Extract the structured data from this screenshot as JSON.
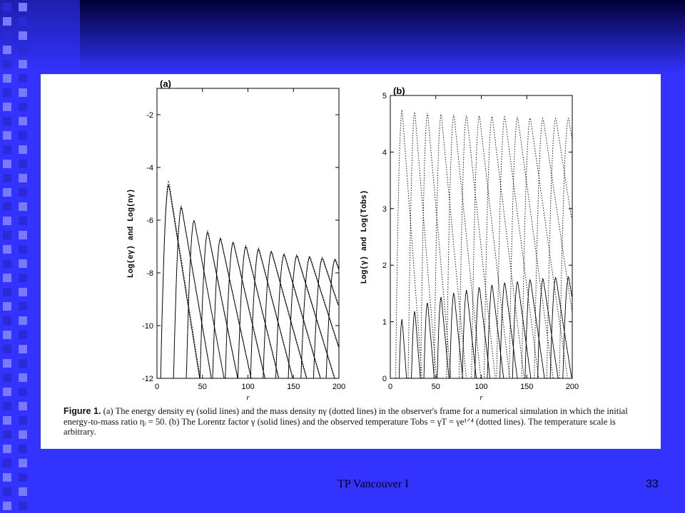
{
  "colors": {
    "slide_background": "#3333ff",
    "gradient_dark": "#000033",
    "square_light": "#7a7aff",
    "square_dark": "#2b2bd6",
    "figure_background": "#ffffff",
    "plot_ink": "#000000"
  },
  "chart_data": [
    {
      "type": "line",
      "panel_label": "(a)",
      "xlabel": "r",
      "ylabel": "Log(eγ) and Log(nγ)",
      "xlim": [
        0,
        200
      ],
      "ylim": [
        -12,
        -1
      ],
      "x_ticks": [
        0,
        50,
        100,
        150,
        200
      ],
      "y_ticks": [
        -12,
        -10,
        -8,
        -6,
        -4,
        -2
      ],
      "grid": false,
      "series": [
        {
          "name": "eγ",
          "style": "solid",
          "peaks_r": [
            13,
            27,
            41,
            56,
            70,
            84,
            98,
            112,
            126,
            140,
            154,
            168,
            182,
            196
          ],
          "peaks_value": [
            -4.65,
            -5.5,
            -6.0,
            -6.45,
            -6.7,
            -6.85,
            -7.0,
            -7.1,
            -7.2,
            -7.3,
            -7.35,
            -7.4,
            -7.45,
            -7.5
          ]
        },
        {
          "name": "nγ",
          "style": "dotted",
          "peaks_r": [
            13,
            27,
            41,
            56,
            70,
            84,
            98,
            112,
            126,
            140,
            154,
            168,
            182,
            196
          ],
          "peaks_value": [
            -4.5,
            -5.45,
            -6.0,
            -6.4,
            -6.65,
            -6.8,
            -6.95,
            -7.05,
            -7.15,
            -7.25,
            -7.3,
            -7.35,
            -7.4,
            -7.45
          ]
        }
      ]
    },
    {
      "type": "line",
      "panel_label": "(b)",
      "xlabel": "r",
      "ylabel": "Log(γ) and Log(Tobs)",
      "xlim": [
        0,
        200
      ],
      "ylim": [
        0,
        5
      ],
      "x_ticks": [
        0,
        50,
        100,
        150,
        200
      ],
      "y_ticks": [
        0,
        1,
        2,
        3,
        4,
        5
      ],
      "grid": false,
      "series": [
        {
          "name": "γ",
          "style": "solid",
          "peaks_r": [
            13,
            27,
            41,
            56,
            70,
            84,
            98,
            112,
            126,
            140,
            154,
            168,
            182,
            196
          ],
          "peaks_value": [
            1.05,
            1.2,
            1.35,
            1.45,
            1.52,
            1.57,
            1.62,
            1.66,
            1.7,
            1.72,
            1.75,
            1.77,
            1.79,
            1.8
          ]
        },
        {
          "name": "Tobs",
          "style": "dotted",
          "peaks_r": [
            13,
            27,
            41,
            56,
            70,
            84,
            98,
            112,
            126,
            140,
            154,
            168,
            182,
            196
          ],
          "peaks_value": [
            4.75,
            4.72,
            4.7,
            4.68,
            4.67,
            4.66,
            4.65,
            4.64,
            4.63,
            4.62,
            4.61,
            4.6,
            4.6,
            4.6
          ]
        }
      ]
    }
  ],
  "caption": {
    "label": "Figure 1.",
    "text": "(a) The energy density eγ (solid lines) and the mass density nγ (dotted lines) in the observer's frame for a numerical simulation in which the initial energy-to-mass ratio ηᵢ = 50. (b) The Lorentz factor γ (solid lines) and the observed temperature Tobs = γT = γe¹ᐟ⁴ (dotted lines). The temperature scale is arbitrary."
  },
  "footer": {
    "text": "TP Vancouver I",
    "slide_number": "33"
  }
}
